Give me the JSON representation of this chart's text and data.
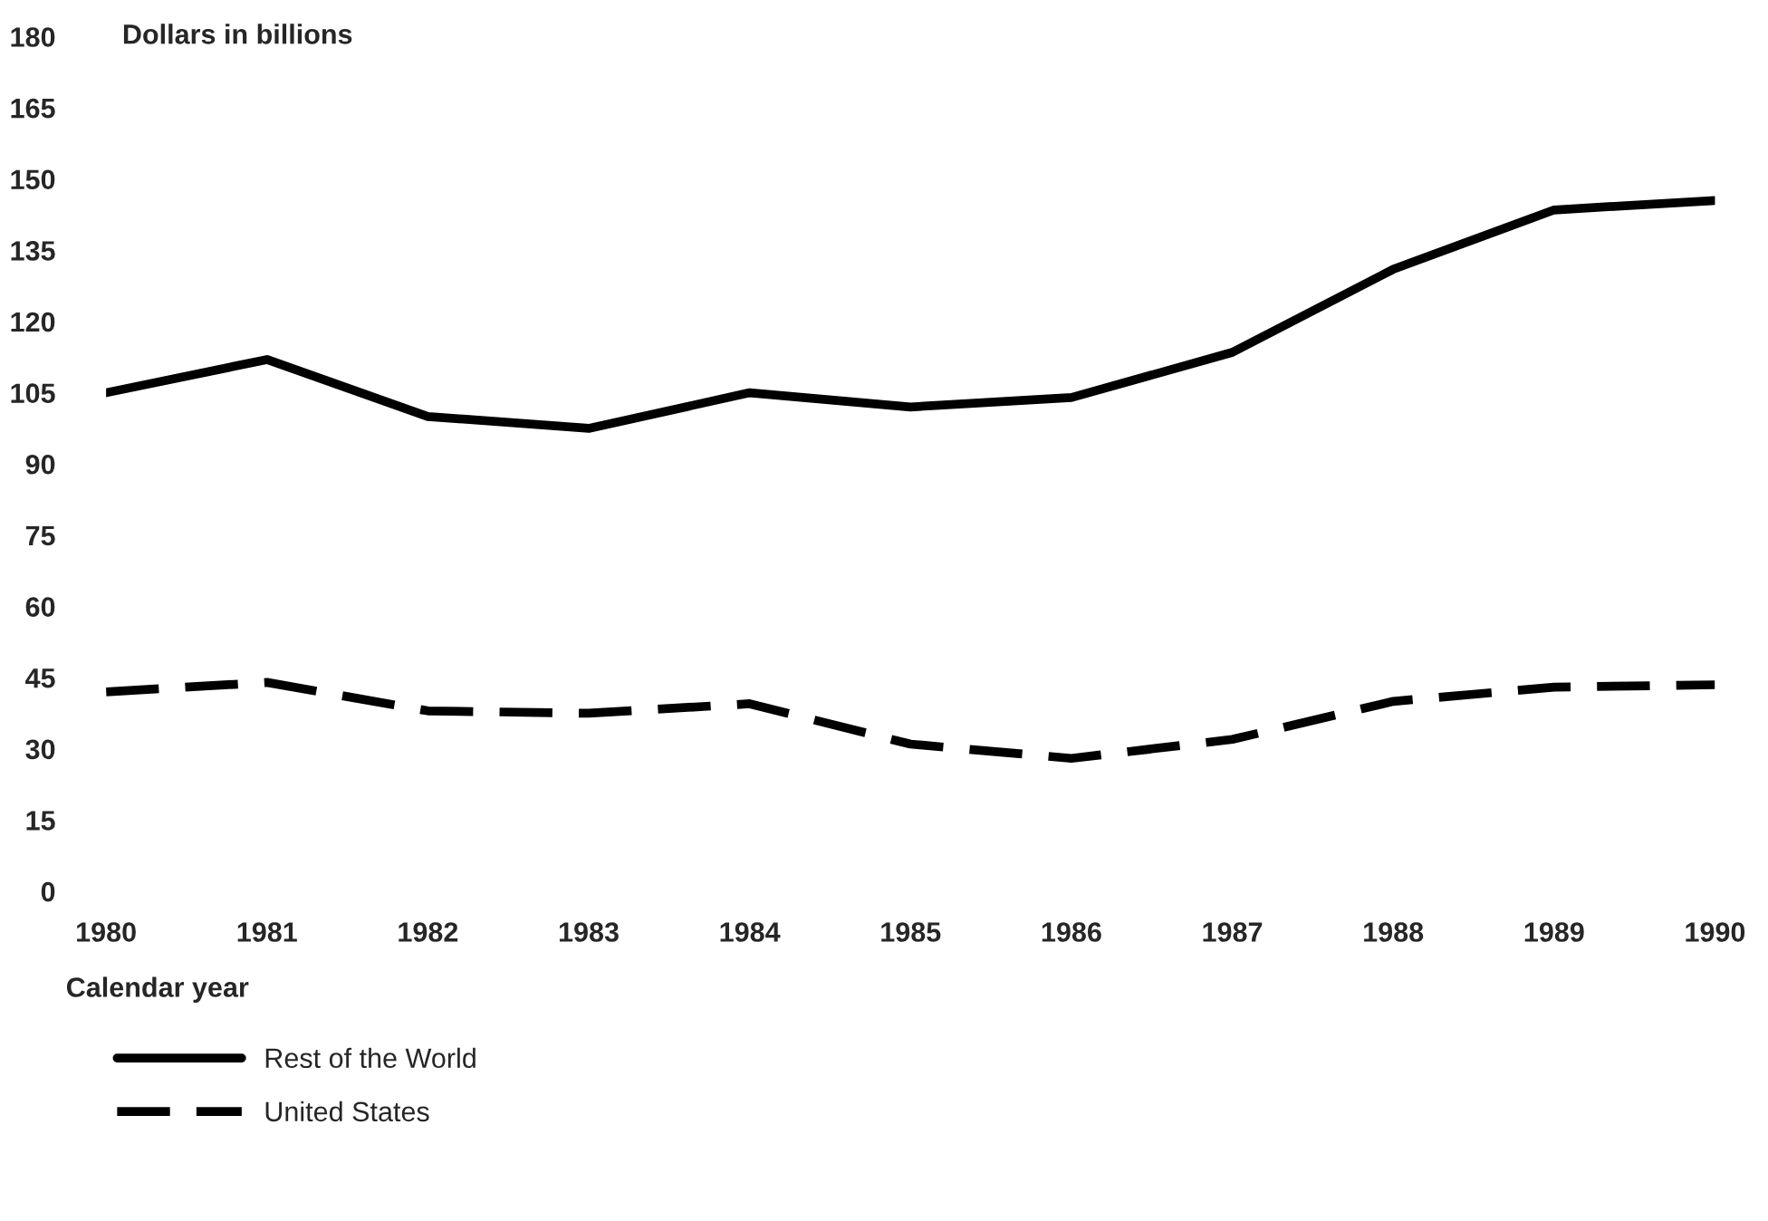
{
  "chart_data": {
    "type": "line",
    "ylabel": "Dollars in billions",
    "xlabel": "Calendar year",
    "x": [
      1980,
      1981,
      1982,
      1983,
      1984,
      1985,
      1986,
      1987,
      1988,
      1989,
      1990
    ],
    "series": [
      {
        "name": "Rest of the World",
        "color": "#000000",
        "line_style": "solid",
        "values": [
          105,
          112,
          100,
          97.5,
          105,
          102,
          104,
          113.5,
          131,
          143.5,
          145.5
        ]
      },
      {
        "name": "United States",
        "color": "#000000",
        "line_style": "dashed",
        "values": [
          42,
          44,
          38,
          37.5,
          39.5,
          31,
          28,
          32,
          40,
          43,
          43.5
        ]
      }
    ],
    "xlim": [
      1980,
      1990
    ],
    "xticks": [
      1980,
      1981,
      1982,
      1983,
      1984,
      1985,
      1986,
      1987,
      1988,
      1989,
      1990
    ],
    "ylim": [
      0,
      180
    ],
    "yticks": [
      0,
      15,
      30,
      45,
      60,
      75,
      90,
      105,
      120,
      135,
      150,
      165,
      180
    ],
    "grid": false,
    "legend": "bottom left",
    "marker": "none"
  }
}
